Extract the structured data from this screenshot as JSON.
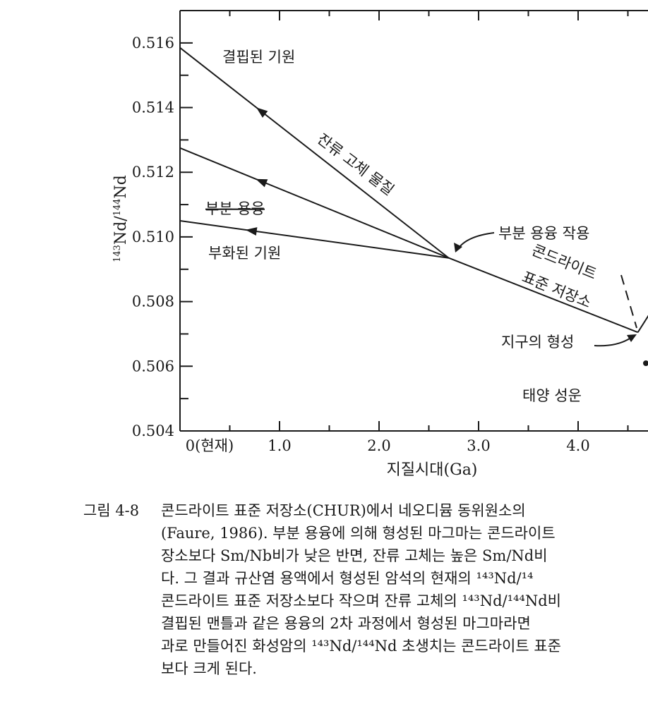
{
  "chart_data": {
    "type": "line",
    "xlabel": "지질시대(Ga)",
    "ylabel": "143Nd/144Nd",
    "xlim": [
      0,
      4.6
    ],
    "ylim": [
      0.504,
      0.517
    ],
    "x_ticks": [
      {
        "value": 0,
        "label": "0(현재)"
      },
      {
        "value": 1,
        "label": "1.0"
      },
      {
        "value": 2,
        "label": "2.0"
      },
      {
        "value": 3,
        "label": "3.0"
      },
      {
        "value": 4,
        "label": "4.0"
      }
    ],
    "y_ticks": [
      {
        "value": 0.504,
        "label": "0.504"
      },
      {
        "value": 0.506,
        "label": "0.506"
      },
      {
        "value": 0.508,
        "label": "0.508"
      },
      {
        "value": 0.51,
        "label": "0.510"
      },
      {
        "value": 0.512,
        "label": "0.512"
      },
      {
        "value": 0.514,
        "label": "0.514"
      },
      {
        "value": 0.516,
        "label": "0.516"
      }
    ],
    "series": [
      {
        "name": "콘드라이트 표준 저장소",
        "points": [
          [
            4.6,
            0.50705
          ],
          [
            2.7,
            0.50935
          ]
        ]
      },
      {
        "name": "결핍된 기원",
        "points": [
          [
            2.7,
            0.50935
          ],
          [
            0,
            0.51585
          ]
        ]
      },
      {
        "points": [
          [
            2.7,
            0.50935
          ],
          [
            0,
            0.51275
          ]
        ]
      },
      {
        "name": "부화된 기원",
        "points": [
          [
            2.7,
            0.50935
          ],
          [
            0,
            0.5105
          ]
        ]
      },
      {
        "points": [
          [
            4.9,
            0.5085
          ],
          [
            4.6,
            0.50705
          ]
        ]
      }
    ],
    "arrows": [
      {
        "x": 0.8,
        "direction": "toward-present",
        "series": 1
      },
      {
        "x": 0.8,
        "direction": "toward-present",
        "series": 2
      },
      {
        "x": 0.7,
        "direction": "toward-present",
        "series": 3
      }
    ],
    "annotations": {
      "depleted": "결핍된 기원",
      "residual": "잔류 고체 물질",
      "partial_melt": "부분 용융",
      "enriched": "부화된 기원",
      "melting_event": "부분 용융 작용",
      "chur_line1": "콘드라이트",
      "chur_line2": "표준 저장소",
      "earth_formation": "지구의 형성",
      "nebula": "태양 성운"
    }
  },
  "caption": {
    "figure_label": "그림 4-8",
    "lines": [
      "콘드라이트 표준 저장소(CHUR)에서 네오디뮴 동위원소의",
      "(Faure, 1986). 부분 용융에 의해 형성된 마그마는 콘드라이트",
      "장소보다 Sm/Nb비가 낮은 반면, 잔류 고체는 높은 Sm/Nd비",
      "다. 그 결과 규산염 용액에서 형성된 암석의 현재의 ¹⁴³Nd/¹⁴",
      "콘드라이트 표준 저장소보다 작으며 잔류 고체의 ¹⁴³Nd/¹⁴⁴Nd비",
      "결핍된 맨틀과 같은 용융의 2차 과정에서 형성된 마그마라면",
      "과로 만들어진 화성암의 ¹⁴³Nd/¹⁴⁴Nd 초생치는 콘드라이트 표준",
      "보다 크게 된다."
    ]
  }
}
